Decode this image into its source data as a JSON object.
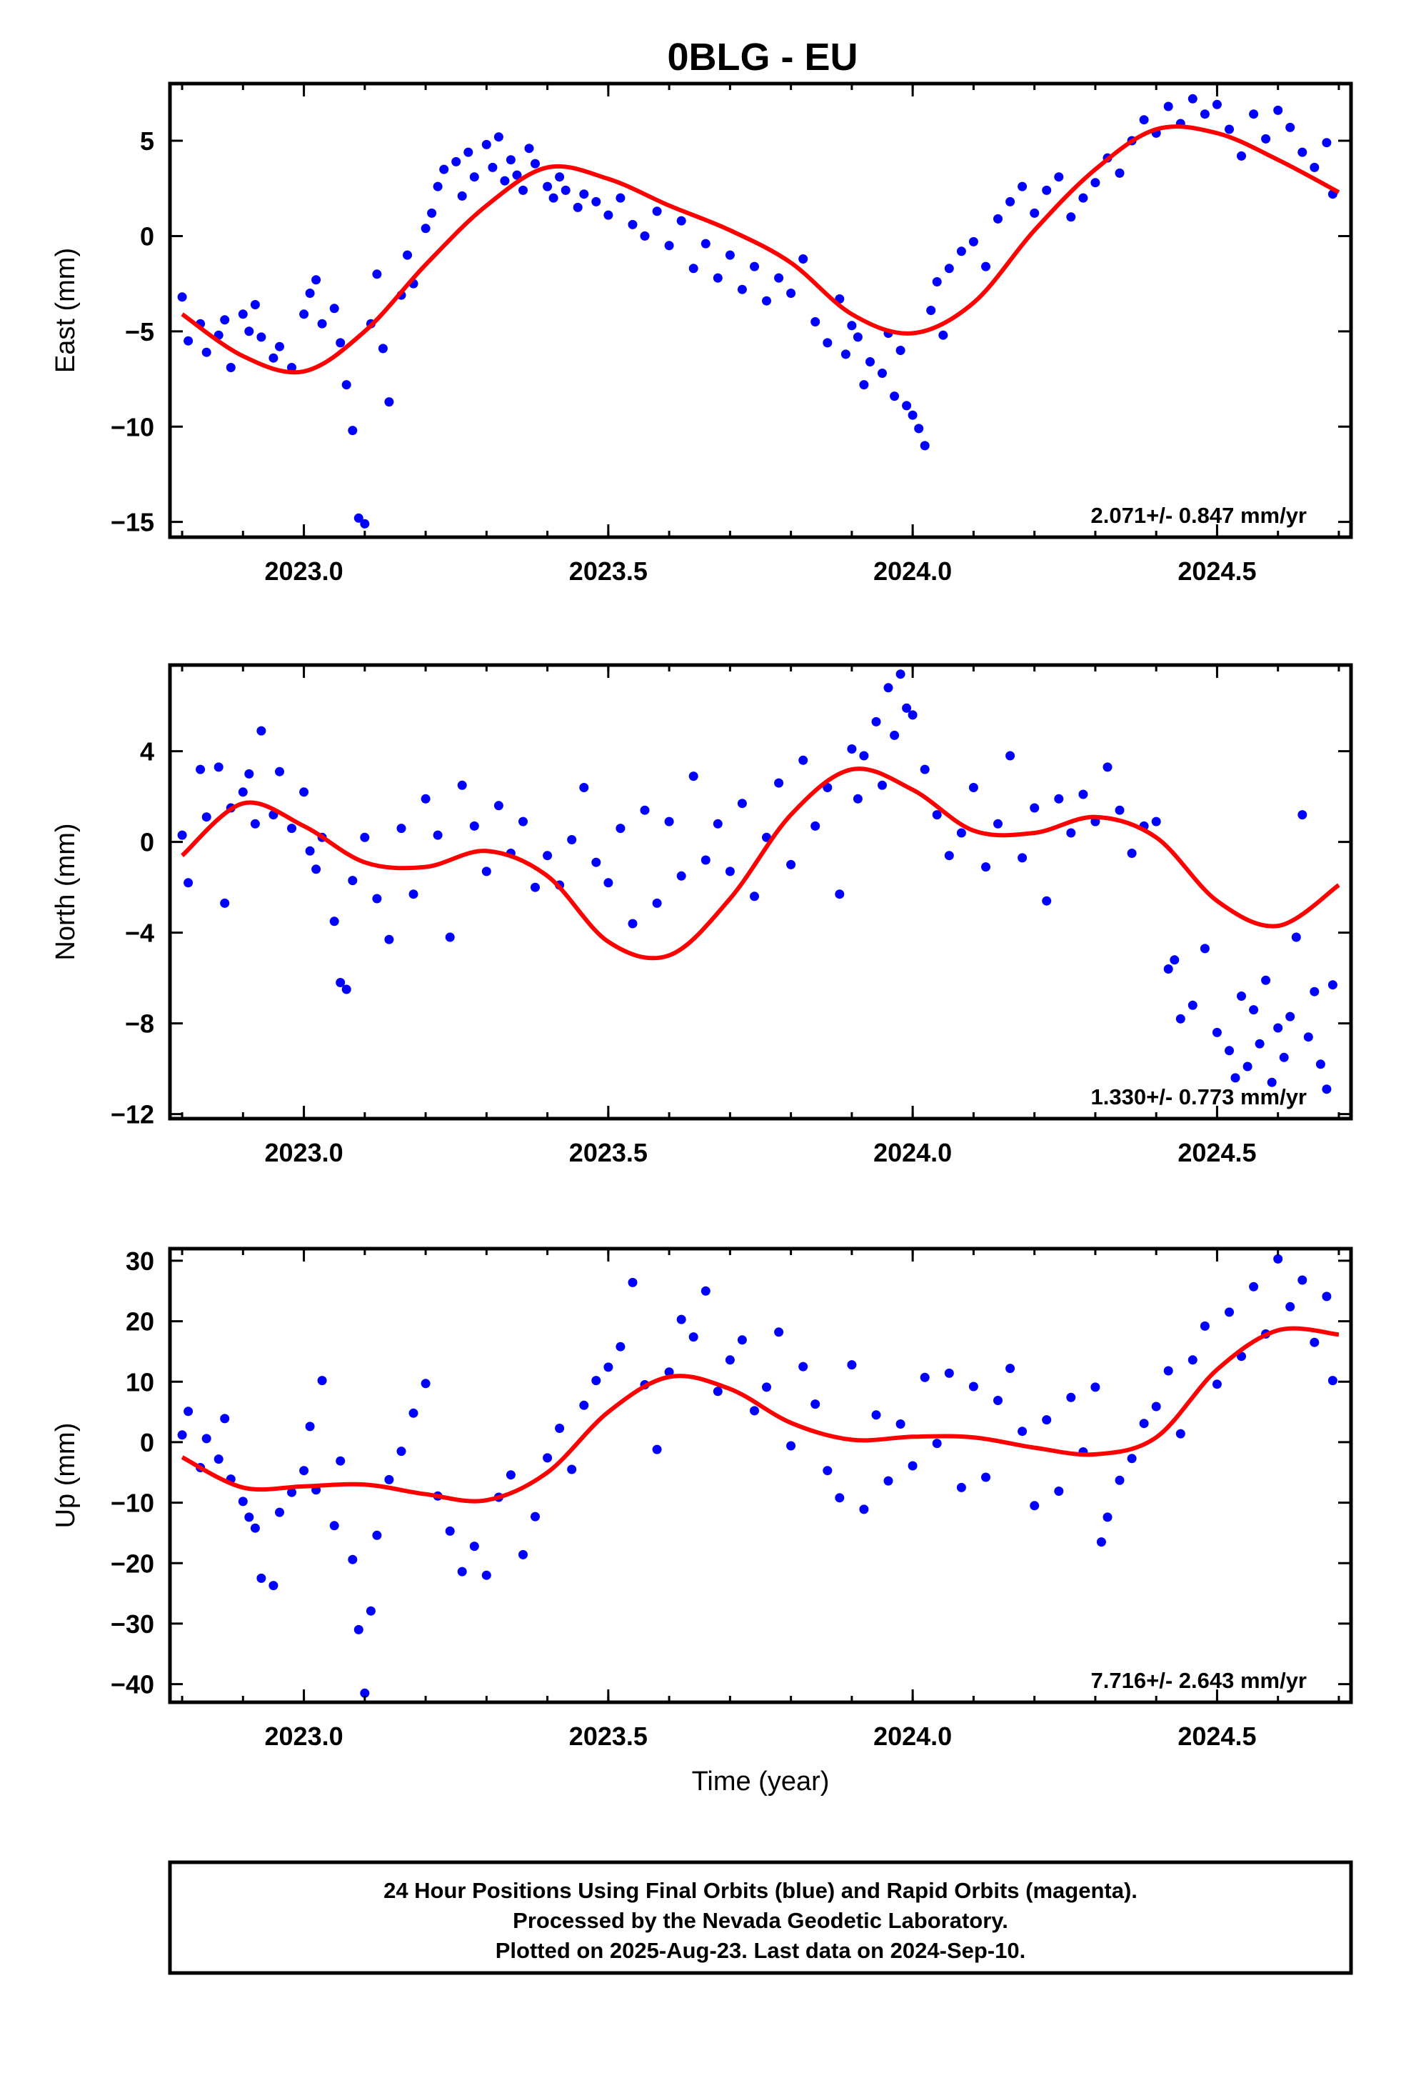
{
  "page": {
    "title": "0BLG - EU",
    "footer_lines": [
      "24 Hour Positions Using Final Orbits (blue) and Rapid Orbits (magenta).",
      "Processed by the Nevada Geodetic Laboratory.",
      "Plotted on 2025-Aug-23. Last data on 2024-Sep-10."
    ]
  },
  "colors": {
    "points": "#0000ff",
    "fit": "#ff0000",
    "frame": "#000000"
  },
  "chart_data": [
    {
      "type": "scatter",
      "title": "0BLG - EU",
      "ylabel": "East (mm)",
      "xlabel": "",
      "xlim": [
        2022.78,
        2024.72
      ],
      "ylim": [
        -15.8,
        8.0
      ],
      "xticks": [
        2023.0,
        2023.5,
        2024.0,
        2024.5
      ],
      "xtick_labels": [
        "2023.0",
        "2023.5",
        "2024.0",
        "2024.5"
      ],
      "yticks": [
        -15,
        -10,
        -5,
        0,
        5
      ],
      "ytick_labels": [
        "−15",
        "−10",
        "−5",
        "0",
        "5"
      ],
      "rate_label": "2.071+/- 0.847 mm/yr",
      "grid": false,
      "series": [
        {
          "kind": "fit-line",
          "x": [
            2022.8,
            2022.9,
            2023.0,
            2023.1,
            2023.2,
            2023.3,
            2023.4,
            2023.5,
            2023.6,
            2023.7,
            2023.8,
            2023.9,
            2024.0,
            2024.1,
            2024.2,
            2024.3,
            2024.4,
            2024.5,
            2024.6,
            2024.7
          ],
          "y": [
            -4.1,
            -6.3,
            -7.1,
            -5.0,
            -1.5,
            1.6,
            3.6,
            3.0,
            1.6,
            0.3,
            -1.4,
            -4.1,
            -5.1,
            -3.5,
            0.3,
            3.5,
            5.6,
            5.4,
            4.0,
            2.3
          ]
        },
        {
          "kind": "points",
          "x": [
            2022.8,
            2022.81,
            2022.83,
            2022.84,
            2022.86,
            2022.87,
            2022.88,
            2022.9,
            2022.91,
            2022.92,
            2022.93,
            2022.95,
            2022.96,
            2022.98,
            2023.0,
            2023.01,
            2023.02,
            2023.03,
            2023.05,
            2023.06,
            2023.07,
            2023.08,
            2023.09,
            2023.1,
            2023.11,
            2023.12,
            2023.13,
            2023.14,
            2023.16,
            2023.17,
            2023.18,
            2023.2,
            2023.21,
            2023.22,
            2023.23,
            2023.25,
            2023.26,
            2023.27,
            2023.28,
            2023.3,
            2023.31,
            2023.32,
            2023.33,
            2023.34,
            2023.35,
            2023.36,
            2023.37,
            2023.38,
            2023.4,
            2023.41,
            2023.42,
            2023.43,
            2023.45,
            2023.46,
            2023.48,
            2023.5,
            2023.52,
            2023.54,
            2023.56,
            2023.58,
            2023.6,
            2023.62,
            2023.64,
            2023.66,
            2023.68,
            2023.7,
            2023.72,
            2023.74,
            2023.76,
            2023.78,
            2023.8,
            2023.82,
            2023.84,
            2023.86,
            2023.88,
            2023.89,
            2023.9,
            2023.91,
            2023.92,
            2023.93,
            2023.95,
            2023.96,
            2023.97,
            2023.98,
            2023.99,
            2024.0,
            2024.01,
            2024.02,
            2024.03,
            2024.04,
            2024.05,
            2024.06,
            2024.08,
            2024.1,
            2024.12,
            2024.14,
            2024.16,
            2024.18,
            2024.2,
            2024.22,
            2024.24,
            2024.26,
            2024.28,
            2024.3,
            2024.32,
            2024.34,
            2024.36,
            2024.38,
            2024.4,
            2024.42,
            2024.44,
            2024.46,
            2024.48,
            2024.5,
            2024.52,
            2024.54,
            2024.56,
            2024.58,
            2024.6,
            2024.62,
            2024.64,
            2024.66,
            2024.68,
            2024.69
          ],
          "y": [
            -3.2,
            -5.5,
            -4.6,
            -6.1,
            -5.2,
            -4.4,
            -6.9,
            -4.1,
            -5.0,
            -3.6,
            -5.3,
            -6.4,
            -5.8,
            -6.9,
            -4.1,
            -3.0,
            -2.3,
            -4.6,
            -3.8,
            -5.6,
            -7.8,
            -10.2,
            -14.8,
            -15.1,
            -4.6,
            -2.0,
            -5.9,
            -8.7,
            -3.1,
            -1.0,
            -2.5,
            0.4,
            1.2,
            2.6,
            3.5,
            3.9,
            2.1,
            4.4,
            3.1,
            4.8,
            3.6,
            5.2,
            2.9,
            4.0,
            3.2,
            2.4,
            4.6,
            3.8,
            2.6,
            2.0,
            3.1,
            2.4,
            1.5,
            2.2,
            1.8,
            1.1,
            2.0,
            0.6,
            0.0,
            1.3,
            -0.5,
            0.8,
            -1.7,
            -0.4,
            -2.2,
            -1.0,
            -2.8,
            -1.6,
            -3.4,
            -2.2,
            -3.0,
            -1.2,
            -4.5,
            -5.6,
            -3.3,
            -6.2,
            -4.7,
            -5.3,
            -7.8,
            -6.6,
            -7.2,
            -5.1,
            -8.4,
            -6.0,
            -8.9,
            -9.4,
            -10.1,
            -11.0,
            -3.9,
            -2.4,
            -5.2,
            -1.7,
            -0.8,
            -0.3,
            -1.6,
            0.9,
            1.8,
            2.6,
            1.2,
            2.4,
            3.1,
            1.0,
            2.0,
            2.8,
            4.1,
            3.3,
            5.0,
            6.1,
            5.4,
            6.8,
            5.9,
            7.2,
            6.4,
            6.9,
            5.6,
            4.2,
            6.4,
            5.1,
            6.6,
            5.7,
            4.4,
            3.6,
            4.9,
            2.2
          ]
        }
      ]
    },
    {
      "type": "scatter",
      "ylabel": "North (mm)",
      "xlabel": "",
      "xlim": [
        2022.78,
        2024.72
      ],
      "ylim": [
        -12.2,
        7.8
      ],
      "xticks": [
        2023.0,
        2023.5,
        2024.0,
        2024.5
      ],
      "xtick_labels": [
        "2023.0",
        "2023.5",
        "2024.0",
        "2024.5"
      ],
      "yticks": [
        -12,
        -8,
        -4,
        0,
        4
      ],
      "ytick_labels": [
        "−12",
        "−8",
        "−4",
        "0",
        "4"
      ],
      "rate_label": "1.330+/- 0.773 mm/yr",
      "grid": false,
      "series": [
        {
          "kind": "fit-line",
          "x": [
            2022.8,
            2022.9,
            2023.0,
            2023.1,
            2023.2,
            2023.3,
            2023.4,
            2023.5,
            2023.6,
            2023.7,
            2023.8,
            2023.9,
            2024.0,
            2024.1,
            2024.2,
            2024.3,
            2024.4,
            2024.5,
            2024.6,
            2024.7
          ],
          "y": [
            -0.6,
            1.7,
            0.7,
            -0.9,
            -1.1,
            -0.4,
            -1.5,
            -4.4,
            -5.0,
            -2.5,
            1.2,
            3.2,
            2.3,
            0.5,
            0.4,
            1.1,
            0.2,
            -2.6,
            -3.7,
            -1.9
          ]
        },
        {
          "kind": "points",
          "x": [
            2022.8,
            2022.81,
            2022.83,
            2022.84,
            2022.86,
            2022.87,
            2022.88,
            2022.9,
            2022.91,
            2022.92,
            2022.93,
            2022.95,
            2022.96,
            2022.98,
            2023.0,
            2023.01,
            2023.02,
            2023.03,
            2023.05,
            2023.06,
            2023.07,
            2023.08,
            2023.1,
            2023.12,
            2023.14,
            2023.16,
            2023.18,
            2023.2,
            2023.22,
            2023.24,
            2023.26,
            2023.28,
            2023.3,
            2023.32,
            2023.34,
            2023.36,
            2023.38,
            2023.4,
            2023.42,
            2023.44,
            2023.46,
            2023.48,
            2023.5,
            2023.52,
            2023.54,
            2023.56,
            2023.58,
            2023.6,
            2023.62,
            2023.64,
            2023.66,
            2023.68,
            2023.7,
            2023.72,
            2023.74,
            2023.76,
            2023.78,
            2023.8,
            2023.82,
            2023.84,
            2023.86,
            2023.88,
            2023.9,
            2023.91,
            2023.92,
            2023.94,
            2023.95,
            2023.96,
            2023.97,
            2023.98,
            2023.99,
            2024.0,
            2024.02,
            2024.04,
            2024.06,
            2024.08,
            2024.1,
            2024.12,
            2024.14,
            2024.16,
            2024.18,
            2024.2,
            2024.22,
            2024.24,
            2024.26,
            2024.28,
            2024.3,
            2024.32,
            2024.34,
            2024.36,
            2024.38,
            2024.4,
            2024.42,
            2024.43,
            2024.44,
            2024.46,
            2024.48,
            2024.5,
            2024.52,
            2024.53,
            2024.54,
            2024.55,
            2024.56,
            2024.57,
            2024.58,
            2024.59,
            2024.6,
            2024.61,
            2024.62,
            2024.63,
            2024.64,
            2024.65,
            2024.66,
            2024.67,
            2024.68,
            2024.69
          ],
          "y": [
            0.3,
            -1.8,
            3.2,
            1.1,
            3.3,
            -2.7,
            1.5,
            2.2,
            3.0,
            0.8,
            4.9,
            1.2,
            3.1,
            0.6,
            2.2,
            -0.4,
            -1.2,
            0.2,
            -3.5,
            -6.2,
            -6.5,
            -1.7,
            0.2,
            -2.5,
            -4.3,
            0.6,
            -2.3,
            1.9,
            0.3,
            -4.2,
            2.5,
            0.7,
            -1.3,
            1.6,
            -0.5,
            0.9,
            -2.0,
            -0.6,
            -1.9,
            0.1,
            2.4,
            -0.9,
            -1.8,
            0.6,
            -3.6,
            1.4,
            -2.7,
            0.9,
            -1.5,
            2.9,
            -0.8,
            0.8,
            -1.3,
            1.7,
            -2.4,
            0.2,
            2.6,
            -1.0,
            3.6,
            0.7,
            2.4,
            -2.3,
            4.1,
            1.9,
            3.8,
            5.3,
            2.5,
            6.8,
            4.7,
            7.4,
            5.9,
            5.6,
            3.2,
            1.2,
            -0.6,
            0.4,
            2.4,
            -1.1,
            0.8,
            3.8,
            -0.7,
            1.5,
            -2.6,
            1.9,
            0.4,
            2.1,
            0.9,
            3.3,
            1.4,
            -0.5,
            0.7,
            0.9,
            -5.6,
            -5.2,
            -7.8,
            -7.2,
            -4.7,
            -8.4,
            -9.2,
            -10.4,
            -6.8,
            -9.9,
            -7.4,
            -8.9,
            -6.1,
            -10.6,
            -8.2,
            -9.5,
            -7.7,
            -4.2,
            1.2,
            -8.6,
            -6.6,
            -9.8,
            -10.9,
            -6.3
          ]
        }
      ]
    },
    {
      "type": "scatter",
      "ylabel": "Up (mm)",
      "xlabel": "Time (year)",
      "xlim": [
        2022.78,
        2024.72
      ],
      "ylim": [
        -43,
        32
      ],
      "xticks": [
        2023.0,
        2023.5,
        2024.0,
        2024.5
      ],
      "xtick_labels": [
        "2023.0",
        "2023.5",
        "2024.0",
        "2024.5"
      ],
      "yticks": [
        -40,
        -30,
        -20,
        -10,
        0,
        10,
        20,
        30
      ],
      "ytick_labels": [
        "−40",
        "−30",
        "−20",
        "−10",
        "0",
        "10",
        "20",
        "30"
      ],
      "rate_label": "7.716+/- 2.643 mm/yr",
      "grid": false,
      "series": [
        {
          "kind": "fit-line",
          "x": [
            2022.8,
            2022.9,
            2023.0,
            2023.1,
            2023.2,
            2023.3,
            2023.4,
            2023.5,
            2023.6,
            2023.7,
            2023.8,
            2023.9,
            2024.0,
            2024.1,
            2024.2,
            2024.3,
            2024.4,
            2024.5,
            2024.6,
            2024.7
          ],
          "y": [
            -2.5,
            -7.5,
            -7.3,
            -7.0,
            -8.6,
            -9.6,
            -5.0,
            5.0,
            10.8,
            8.8,
            3.2,
            0.4,
            0.9,
            0.8,
            -0.9,
            -2.0,
            0.8,
            12.0,
            18.5,
            17.8
          ]
        },
        {
          "kind": "points",
          "x": [
            2022.8,
            2022.81,
            2022.83,
            2022.84,
            2022.86,
            2022.87,
            2022.88,
            2022.9,
            2022.91,
            2022.92,
            2022.93,
            2022.95,
            2022.96,
            2022.98,
            2023.0,
            2023.01,
            2023.02,
            2023.03,
            2023.05,
            2023.06,
            2023.08,
            2023.09,
            2023.1,
            2023.11,
            2023.12,
            2023.14,
            2023.16,
            2023.18,
            2023.2,
            2023.22,
            2023.24,
            2023.26,
            2023.28,
            2023.3,
            2023.32,
            2023.34,
            2023.36,
            2023.38,
            2023.4,
            2023.42,
            2023.44,
            2023.46,
            2023.48,
            2023.5,
            2023.52,
            2023.54,
            2023.56,
            2023.58,
            2023.6,
            2023.62,
            2023.64,
            2023.66,
            2023.68,
            2023.7,
            2023.72,
            2023.74,
            2023.76,
            2023.78,
            2023.8,
            2023.82,
            2023.84,
            2023.86,
            2023.88,
            2023.9,
            2023.92,
            2023.94,
            2023.96,
            2023.98,
            2024.0,
            2024.02,
            2024.04,
            2024.06,
            2024.08,
            2024.1,
            2024.12,
            2024.14,
            2024.16,
            2024.18,
            2024.2,
            2024.22,
            2024.24,
            2024.26,
            2024.28,
            2024.3,
            2024.31,
            2024.32,
            2024.34,
            2024.36,
            2024.38,
            2024.4,
            2024.42,
            2024.44,
            2024.46,
            2024.48,
            2024.5,
            2024.52,
            2024.54,
            2024.56,
            2024.58,
            2024.6,
            2024.62,
            2024.64,
            2024.66,
            2024.68,
            2024.69
          ],
          "y": [
            1.2,
            5.1,
            -4.2,
            0.6,
            -2.8,
            3.9,
            -6.1,
            -9.8,
            -12.4,
            -14.2,
            -22.5,
            -23.7,
            -11.6,
            -8.3,
            -4.7,
            2.6,
            -7.9,
            10.2,
            -13.8,
            -3.1,
            -19.4,
            -31.0,
            -41.5,
            -27.9,
            -15.4,
            -6.2,
            -1.5,
            4.8,
            9.7,
            -8.9,
            -14.7,
            -21.4,
            -17.2,
            -22.0,
            -9.1,
            -5.4,
            -18.6,
            -12.3,
            -2.6,
            2.3,
            -4.5,
            6.1,
            10.2,
            12.4,
            15.8,
            26.4,
            9.5,
            -1.2,
            11.6,
            20.3,
            17.4,
            25.0,
            8.4,
            13.6,
            16.9,
            5.2,
            9.1,
            18.2,
            -0.6,
            12.5,
            6.3,
            -4.7,
            -9.2,
            12.8,
            -11.1,
            4.5,
            -6.4,
            3.0,
            -3.9,
            10.7,
            -0.2,
            11.4,
            -7.5,
            9.2,
            -5.8,
            6.9,
            12.2,
            1.8,
            -10.5,
            3.7,
            -8.1,
            7.4,
            -1.6,
            9.1,
            -16.5,
            -12.4,
            -6.3,
            -2.7,
            3.1,
            5.9,
            11.8,
            1.4,
            13.6,
            19.2,
            9.6,
            21.5,
            14.2,
            25.7,
            17.9,
            30.3,
            22.4,
            26.8,
            16.5,
            24.1,
            10.2
          ]
        }
      ]
    }
  ]
}
